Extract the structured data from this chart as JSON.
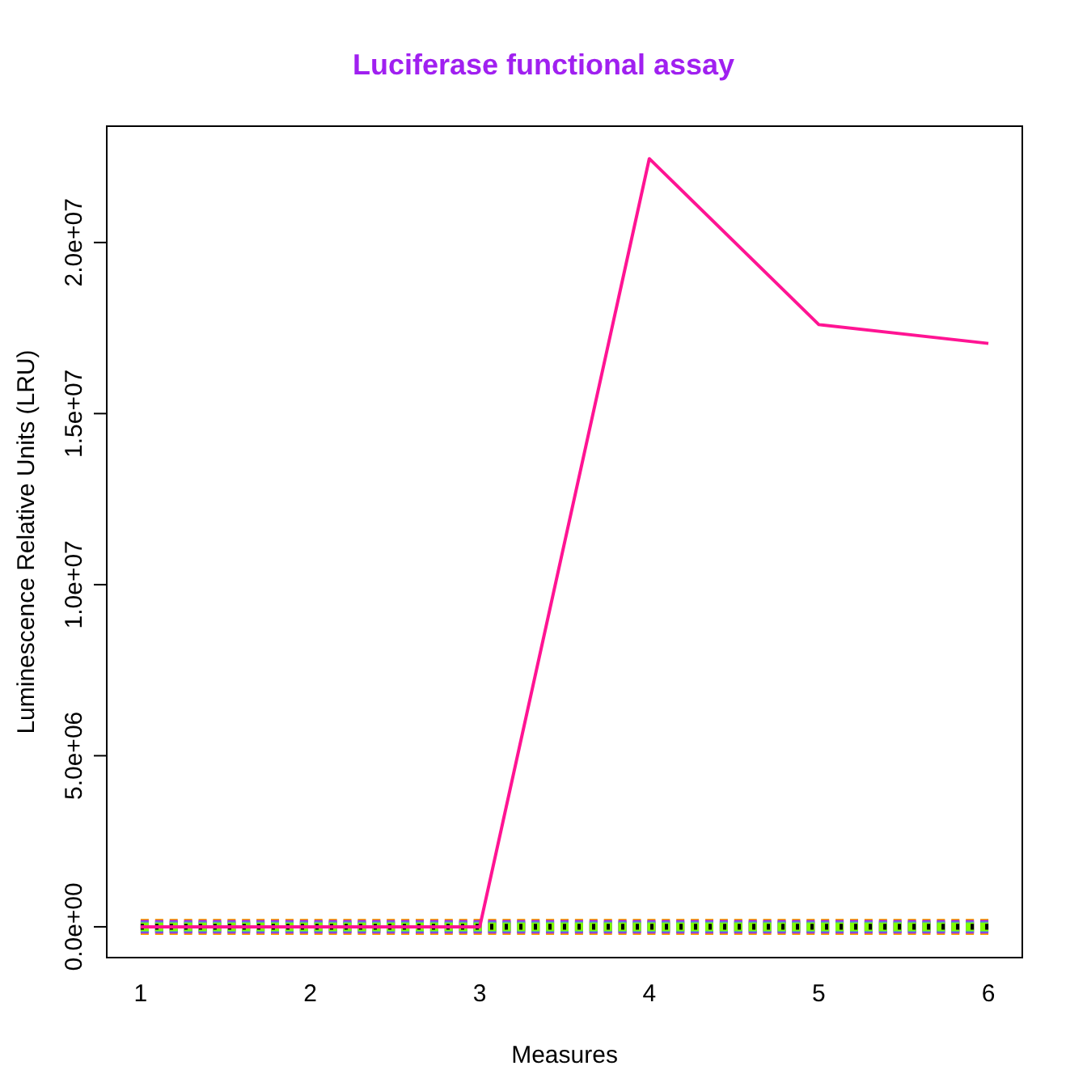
{
  "chart_data": {
    "type": "line",
    "title": "Luciferase functional assay",
    "xlabel": "Measures",
    "ylabel": "Luminescence Relative Units (LRU)",
    "x": [
      1,
      2,
      3,
      4,
      5,
      6
    ],
    "series": [
      {
        "color": "#ff1493",
        "values": [
          0,
          0,
          0,
          22450000,
          17600000,
          17050000
        ]
      },
      {
        "color": "#000000",
        "values": [
          0,
          0,
          0,
          0,
          0,
          0
        ],
        "line_style": "dotted"
      },
      {
        "color": "#7fff00",
        "values": [
          0,
          0,
          0,
          0,
          0,
          0
        ],
        "line_style": "dashed"
      },
      {
        "color": "#4f94cd",
        "values": [
          0,
          0,
          0,
          0,
          0,
          0
        ],
        "line_style": "dashed"
      },
      {
        "color": "#a020f0",
        "values": [
          0,
          0,
          0,
          0,
          0,
          0
        ],
        "line_style": "dashed"
      },
      {
        "color": "#ffa500",
        "values": [
          0,
          0,
          0,
          0,
          0,
          0
        ],
        "line_style": "dashed"
      }
    ],
    "xlim": [
      0.8,
      6.2
    ],
    "xticks": [
      1,
      2,
      3,
      4,
      5,
      6
    ],
    "ylim": [
      -900000,
      23400000
    ],
    "yticks": [
      {
        "value": 0,
        "label": "0.0e+00"
      },
      {
        "value": 5000000,
        "label": "5.0e+06"
      },
      {
        "value": 10000000,
        "label": "1.0e+07"
      },
      {
        "value": 15000000,
        "label": "1.5e+07"
      },
      {
        "value": 20000000,
        "label": "2.0e+07"
      }
    ],
    "grid": false,
    "legend": false,
    "marker": "none"
  }
}
